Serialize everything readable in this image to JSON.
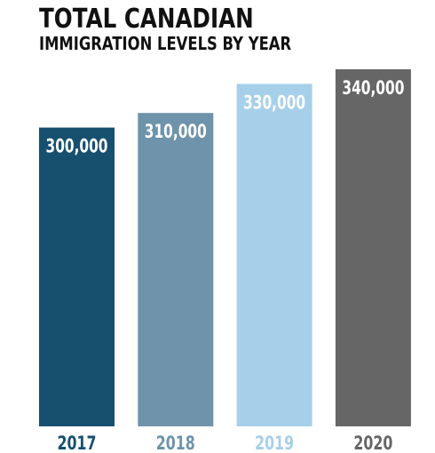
{
  "chart_data": {
    "type": "bar",
    "title": "TOTAL CANADIAN",
    "subtitle": "IMMIGRATION LEVELS BY YEAR",
    "categories": [
      "2017",
      "2018",
      "2019",
      "2020"
    ],
    "values": [
      300000,
      310000,
      330000,
      340000
    ],
    "data_labels": [
      "300,000",
      "310,000",
      "330,000",
      "340,000"
    ],
    "colors": [
      "#17506f",
      "#6e93aa",
      "#a6d0ea",
      "#666666"
    ],
    "ylim": [
      0,
      340000
    ],
    "grid": false,
    "legend": "none"
  }
}
